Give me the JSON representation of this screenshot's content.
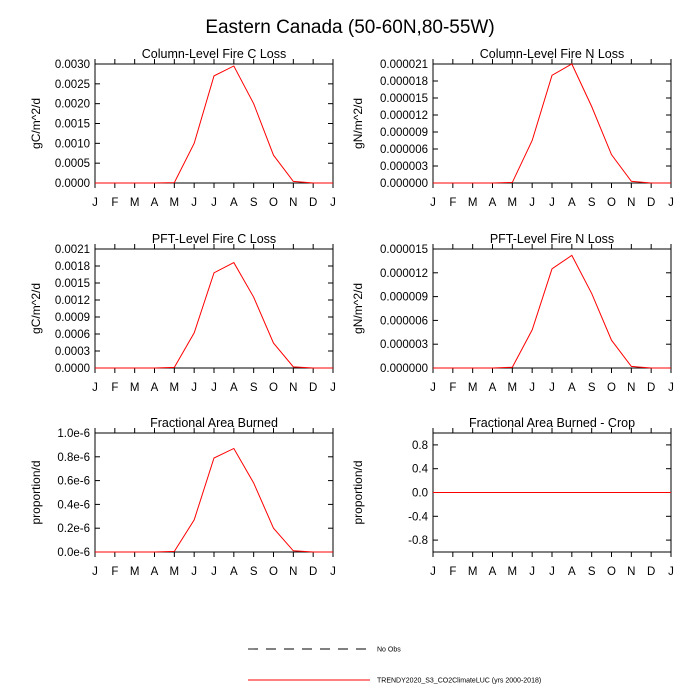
{
  "main_title": "Eastern Canada (50-60N,80-55W)",
  "months": [
    "J",
    "F",
    "M",
    "A",
    "M",
    "J",
    "J",
    "A",
    "S",
    "O",
    "N",
    "D",
    "J"
  ],
  "colors": {
    "model": "#ff0000",
    "obs": "#000000",
    "axis": "#000000",
    "background": "#ffffff"
  },
  "legend": {
    "obs_label": "No Obs",
    "model_label": "TRENDY2020_S3_CO2ClimateLUC (yrs 2000-2018)"
  },
  "chart_data": [
    {
      "type": "line",
      "title": "Column-Level Fire C Loss",
      "ylabel": "gC/m^2/d",
      "ylim": [
        0,
        0.003
      ],
      "yticks": [
        0,
        0.0005,
        0.001,
        0.0015,
        0.002,
        0.0025,
        0.003
      ],
      "ytick_labels": [
        "0.0000",
        "0.0005",
        "0.0010",
        "0.0015",
        "0.0020",
        "0.0025",
        "0.0030"
      ],
      "series": [
        {
          "name": "TRENDY2020_S3_CO2ClimateLUC",
          "values": [
            0.0,
            0.0,
            0.0,
            0.0,
            1e-05,
            0.001,
            0.0027,
            0.00295,
            0.002,
            0.0007,
            4e-05,
            0.0,
            0.0
          ]
        }
      ]
    },
    {
      "type": "line",
      "title": "Column-Level Fire N Loss",
      "ylabel": "gN/m^2/d",
      "ylim": [
        0,
        2.1e-05
      ],
      "yticks": [
        0,
        3e-06,
        6e-06,
        9e-06,
        1.2e-05,
        1.5e-05,
        1.8e-05,
        2.1e-05
      ],
      "ytick_labels": [
        "0.000000",
        "0.000003",
        "0.000006",
        "0.000009",
        "0.000012",
        "0.000015",
        "0.000018",
        "0.000021"
      ],
      "series": [
        {
          "name": "TRENDY2020_S3_CO2ClimateLUC",
          "values": [
            0.0,
            0.0,
            0.0,
            0.0,
            1e-07,
            7.5e-06,
            1.9e-05,
            2.1e-05,
            1.35e-05,
            5e-06,
            3e-07,
            0.0,
            0.0
          ]
        }
      ]
    },
    {
      "type": "line",
      "title": "PFT-Level Fire C Loss",
      "ylabel": "gC/m^2/d",
      "ylim": [
        0,
        0.0021
      ],
      "yticks": [
        0,
        0.0003,
        0.0006,
        0.0009,
        0.0012,
        0.0015,
        0.0018,
        0.0021
      ],
      "ytick_labels": [
        "0.0000",
        "0.0003",
        "0.0006",
        "0.0009",
        "0.0012",
        "0.0015",
        "0.0018",
        "0.0021"
      ],
      "series": [
        {
          "name": "TRENDY2020_S3_CO2ClimateLUC",
          "values": [
            0.0,
            0.0,
            0.0,
            0.0,
            1e-05,
            0.00062,
            0.00168,
            0.00186,
            0.00125,
            0.00044,
            2e-05,
            0.0,
            0.0
          ]
        }
      ]
    },
    {
      "type": "line",
      "title": "PFT-Level Fire N Loss",
      "ylabel": "gN/m^2/d",
      "ylim": [
        0,
        1.5e-05
      ],
      "yticks": [
        0,
        3e-06,
        6e-06,
        9e-06,
        1.2e-05,
        1.5e-05
      ],
      "ytick_labels": [
        "0.000000",
        "0.000003",
        "0.000006",
        "0.000009",
        "0.000012",
        "0.000015"
      ],
      "series": [
        {
          "name": "TRENDY2020_S3_CO2ClimateLUC",
          "values": [
            0.0,
            0.0,
            0.0,
            0.0,
            1e-07,
            4.8e-06,
            1.25e-05,
            1.42e-05,
            9.4e-06,
            3.5e-06,
            2e-07,
            0.0,
            0.0
          ]
        }
      ]
    },
    {
      "type": "line",
      "title": "Fractional Area Burned",
      "ylabel": "proportion/d",
      "ylim": [
        0,
        1e-06
      ],
      "yticks": [
        0,
        2e-07,
        4e-07,
        6e-07,
        8e-07,
        1e-06
      ],
      "ytick_labels": [
        "0.0e-6",
        "0.2e-6",
        "0.4e-6",
        "0.6e-6",
        "0.8e-6",
        "1.0e-6"
      ],
      "series": [
        {
          "name": "TRENDY2020_S3_CO2ClimateLUC",
          "values": [
            0.0,
            0.0,
            0.0,
            0.0,
            5e-09,
            2.7e-07,
            7.9e-07,
            8.7e-07,
            5.8e-07,
            2e-07,
            1e-08,
            0.0,
            0.0
          ]
        }
      ]
    },
    {
      "type": "line",
      "title": "Fractional Area Burned - Crop",
      "ylabel": "proportion/d",
      "ylim": [
        -1,
        1
      ],
      "yticks": [
        -0.8,
        -0.4,
        0,
        0.4,
        0.8
      ],
      "ytick_labels": [
        "-0.8",
        "-0.4",
        "0.0",
        "0.4",
        "0.8"
      ],
      "series": [
        {
          "name": "TRENDY2020_S3_CO2ClimateLUC",
          "values": [
            0,
            0,
            0,
            0,
            0,
            0,
            0,
            0,
            0,
            0,
            0,
            0,
            0
          ]
        }
      ]
    }
  ]
}
